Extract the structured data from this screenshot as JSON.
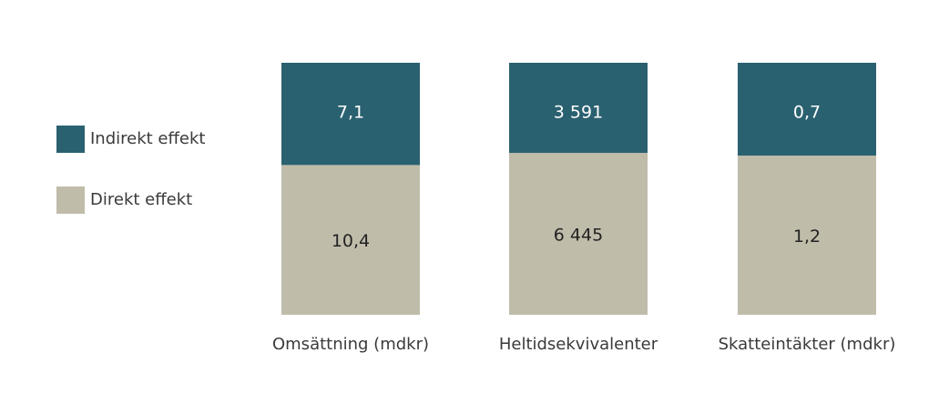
{
  "chart_data": {
    "type": "bar",
    "stacked": "percent",
    "categories": [
      "Omsättning (mdkr)",
      "Heltidsekvivalenter",
      "Skatteintäkter (mdkr)"
    ],
    "series": [
      {
        "name": "Direkt effekt",
        "color": "#c0bcaa",
        "label_color": "#222222",
        "values": [
          10.4,
          6445,
          1.2
        ],
        "value_labels": [
          "10,4",
          "6 445",
          "1,2"
        ]
      },
      {
        "name": "Indirekt effekt",
        "color": "#2a6170",
        "label_color": "#ffffff",
        "values": [
          7.1,
          3591,
          0.7
        ],
        "value_labels": [
          "7,1",
          "3 591",
          "0,7"
        ]
      }
    ]
  }
}
